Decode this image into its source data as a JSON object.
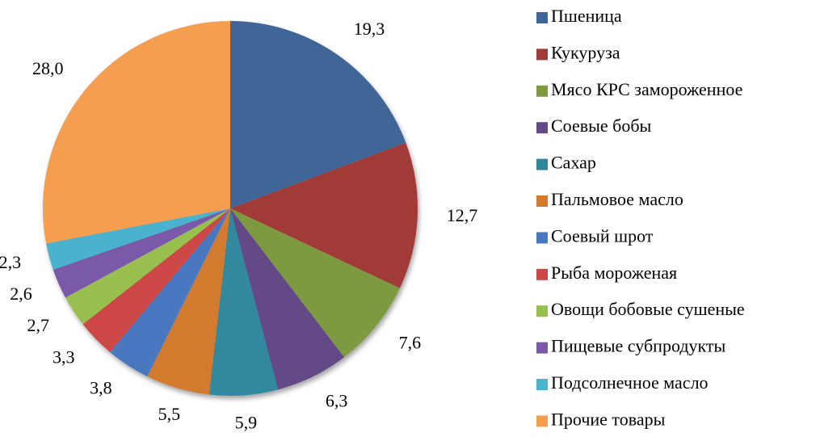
{
  "chart_data": {
    "type": "pie",
    "categories": [
      "Пшеница",
      "Кукуруза",
      "Мясо КРС замороженное",
      "Соевые бобы",
      "Сахар",
      "Пальмовое масло",
      "Соевый шрот",
      "Рыба мороженая",
      "Овощи бобовые сушеные",
      "Пищевые субпродукты",
      "Подсолнечное масло",
      "Прочие товары"
    ],
    "values": [
      19.3,
      12.7,
      7.6,
      6.3,
      5.9,
      5.5,
      3.8,
      3.3,
      2.7,
      2.6,
      2.3,
      28.0
    ],
    "value_labels": [
      "19,3",
      "12,7",
      "7,6",
      "6,3",
      "5,9",
      "5,5",
      "3,8",
      "3,3",
      "2,7",
      "2,6",
      "2,3",
      "28,0"
    ],
    "colors": [
      "#3f6698",
      "#a03b39",
      "#7d9a40",
      "#634a85",
      "#31889c",
      "#d27a2f",
      "#4878c0",
      "#cc4645",
      "#99c04f",
      "#7a5aa8",
      "#4cb2cd",
      "#f59e4f"
    ],
    "legend": "right"
  }
}
